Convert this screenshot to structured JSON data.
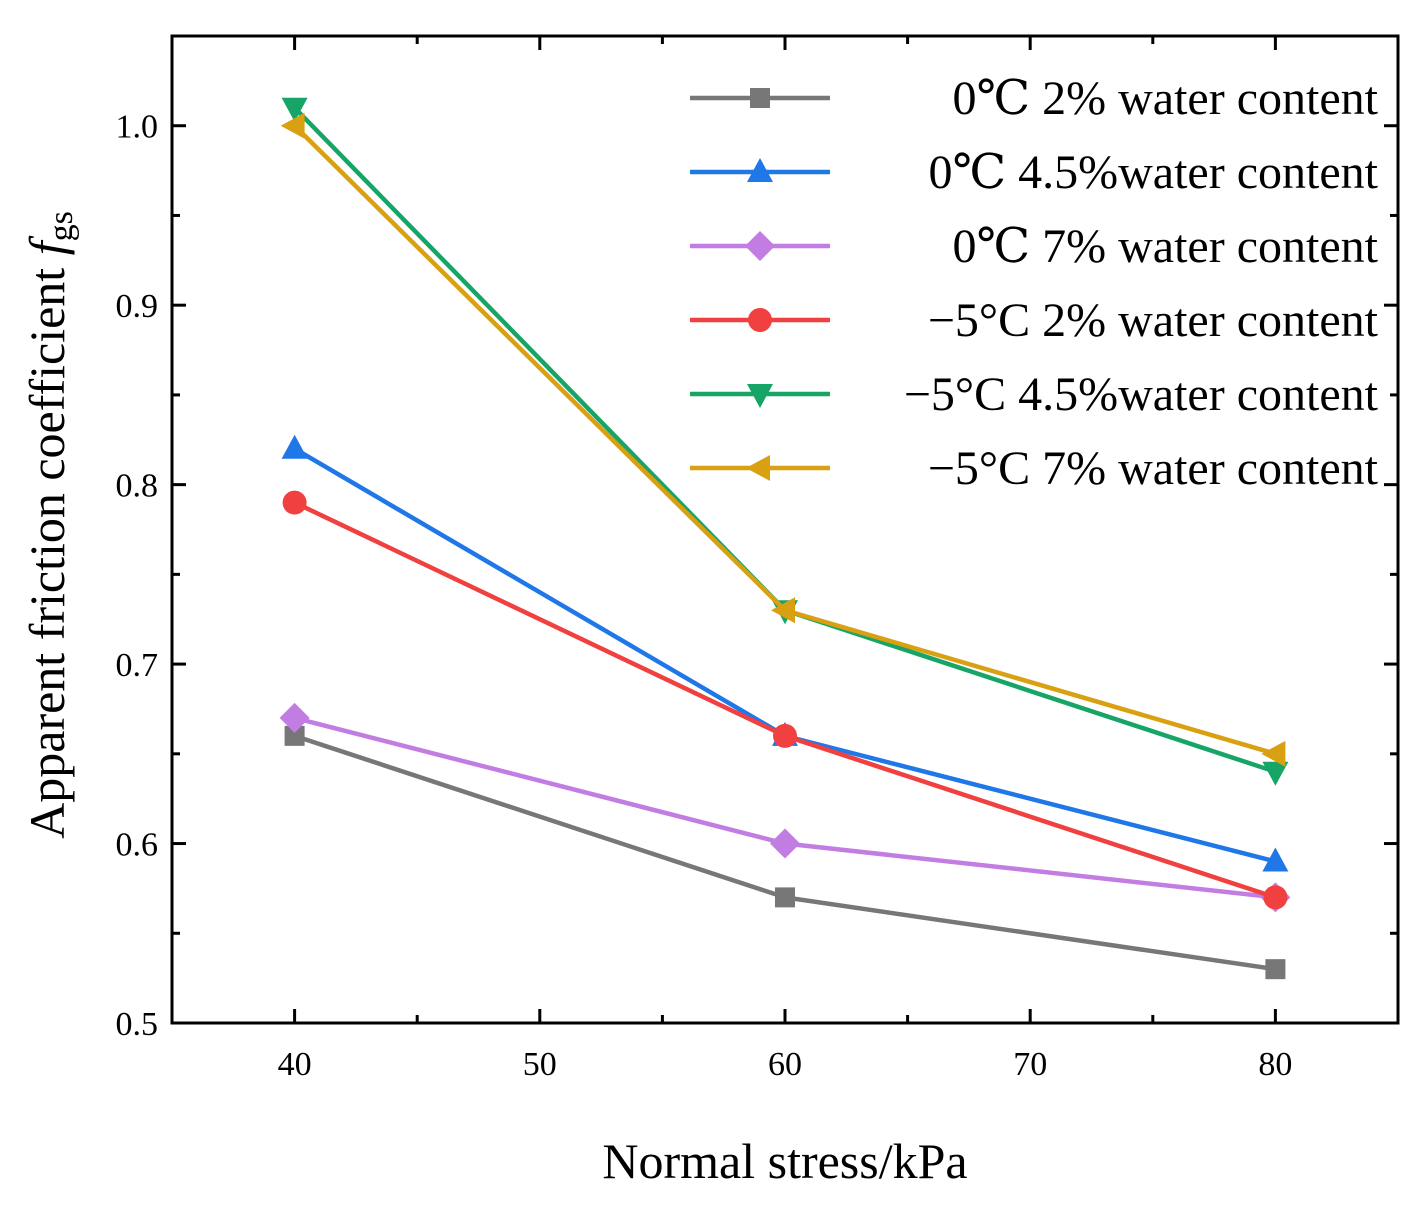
{
  "chart_data": {
    "type": "line",
    "xlabel": "Normal stress/kPa",
    "ylabel": "Apparent friction coefficient ",
    "ylabel_symbol": "f",
    "ylabel_subscript": "gs",
    "xlim": [
      35,
      85
    ],
    "ylim": [
      0.5,
      1.05
    ],
    "xticks": [
      40,
      50,
      60,
      70,
      80
    ],
    "xtick_labels": [
      "40",
      "50",
      "60",
      "70",
      "80"
    ],
    "yticks": [
      0.5,
      0.6,
      0.7,
      0.8,
      0.9,
      1.0
    ],
    "ytick_labels": [
      "0.5",
      "0.6",
      "0.7",
      "0.8",
      "0.9",
      "1.0"
    ],
    "x": [
      40,
      60,
      80
    ],
    "grid": false,
    "legend_position": "top-right",
    "series": [
      {
        "name": "0℃   2% water content",
        "color": "#777777",
        "marker": "square",
        "values": [
          0.66,
          0.57,
          0.53
        ]
      },
      {
        "name": "0℃ 4.5%water content",
        "color": "#1f77e8",
        "marker": "triangle-up",
        "values": [
          0.82,
          0.66,
          0.59
        ]
      },
      {
        "name": "0℃   7% water content",
        "color": "#c27de3",
        "marker": "diamond",
        "values": [
          0.67,
          0.6,
          0.57
        ]
      },
      {
        "name": "−5°C   2% water content",
        "color": "#f04040",
        "marker": "circle",
        "values": [
          0.79,
          0.66,
          0.57
        ]
      },
      {
        "name": "−5°C 4.5%water content",
        "color": "#17a567",
        "marker": "triangle-down",
        "values": [
          1.01,
          0.73,
          0.64
        ]
      },
      {
        "name": "−5°C   7% water content",
        "color": "#d9a011",
        "marker": "triangle-left",
        "values": [
          1.0,
          0.73,
          0.65
        ]
      }
    ]
  }
}
